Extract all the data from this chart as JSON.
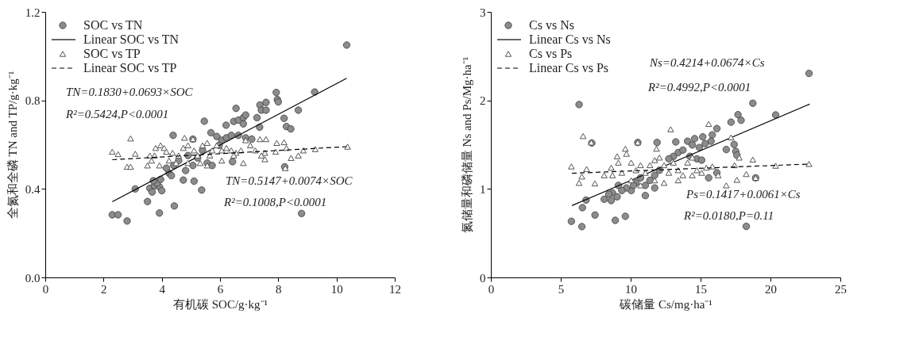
{
  "chart_data": [
    {
      "type": "scatter",
      "xlabel": "有机碳 SOC/g·kg⁻¹",
      "ylabel": "全氮和全磷 TN and TP/g·kg⁻¹",
      "xlim": [
        0,
        12
      ],
      "xticks": [
        0,
        2,
        4,
        6,
        8,
        10,
        12
      ],
      "ylim": [
        0,
        1.2
      ],
      "yticks": [
        {
          "value": 0,
          "label": "0.0"
        },
        0.4,
        0.8,
        1.2
      ],
      "grid": false,
      "legend": "top left",
      "series": [
        {
          "name": "SOC vs TN",
          "type": "scatter",
          "marker": "circle",
          "color": "#8c8c8c",
          "x": [
            10.35,
            2.3,
            2.5,
            2.81,
            3.92,
            4.43,
            3.51,
            3.09,
            3.59,
            3.75,
            3.67,
            3.92,
            4.0,
            3.84,
            3.71,
            3.96,
            4.25,
            4.16,
            4.41,
            4.33,
            4.74,
            5.11,
            5.37,
            4.39,
            5.46,
            5.07,
            5.69,
            4.58,
            4.9,
            5.23,
            5.56,
            5.73,
            5.4,
            5.07,
            4.82,
            5.89,
            6.06,
            6.22,
            5.97,
            6.21,
            6.39,
            6.43,
            6.55,
            6.47,
            6.63,
            6.8,
            6.88,
            6.8,
            6.63,
            6.88,
            7.09,
            7.27,
            7.37,
            7.58,
            7.42,
            7.58,
            7.36,
            7.93,
            7.97,
            8.0,
            8.2,
            8.28,
            8.43,
            8.69,
            9.25,
            8.22,
            8.8
          ],
          "values": [
            1.05,
            0.283,
            0.283,
            0.255,
            0.291,
            0.323,
            0.343,
            0.4,
            0.403,
            0.414,
            0.386,
            0.409,
            0.392,
            0.426,
            0.437,
            0.443,
            0.471,
            0.494,
            0.506,
            0.46,
            0.44,
            0.435,
            0.395,
            0.642,
            0.706,
            0.625,
            0.654,
            0.528,
            0.551,
            0.54,
            0.517,
            0.506,
            0.574,
            0.506,
            0.483,
            0.637,
            0.62,
            0.631,
            0.597,
            0.688,
            0.642,
            0.523,
            0.764,
            0.705,
            0.711,
            0.722,
            0.734,
            0.694,
            0.642,
            0.631,
            0.625,
            0.722,
            0.779,
            0.791,
            0.756,
            0.756,
            0.679,
            0.836,
            0.804,
            0.793,
            0.719,
            0.682,
            0.671,
            0.756,
            0.838,
            0.5,
            0.289
          ]
        },
        {
          "name": "Linear SOC vs TN",
          "type": "line",
          "line_style": "solid",
          "color": "#000000",
          "x": [
            2.3,
            10.35
          ],
          "values": [
            0.342,
            0.9
          ]
        },
        {
          "name": "SOC vs TP",
          "type": "scatter",
          "marker": "triangle",
          "color": "#555555",
          "x": [
            2.3,
            2.5,
            2.93,
            2.81,
            2.93,
            3.09,
            3.51,
            3.65,
            3.59,
            3.79,
            3.96,
            4.08,
            3.92,
            3.75,
            4.16,
            4.37,
            4.25,
            4.49,
            4.58,
            4.78,
            4.74,
            4.9,
            5.07,
            5.11,
            5.23,
            5.4,
            5.32,
            5.56,
            5.65,
            5.73,
            5.89,
            6.06,
            6.22,
            6.39,
            6.55,
            6.72,
            6.8,
            6.88,
            7.04,
            7.21,
            7.37,
            7.58,
            7.54,
            7.54,
            7.42,
            7.95,
            8.2,
            7.91,
            8.28,
            8.44,
            8.69,
            8.86,
            9.27,
            10.38,
            8.24,
            6.47,
            6.06,
            5.56,
            4.9
          ],
          "values": [
            0.568,
            0.557,
            0.628,
            0.5,
            0.5,
            0.559,
            0.506,
            0.528,
            0.551,
            0.585,
            0.597,
            0.585,
            0.506,
            0.551,
            0.568,
            0.563,
            0.528,
            0.517,
            0.551,
            0.631,
            0.585,
            0.597,
            0.625,
            0.574,
            0.551,
            0.597,
            0.517,
            0.608,
            0.551,
            0.574,
            0.597,
            0.574,
            0.585,
            0.574,
            0.563,
            0.574,
            0.517,
            0.62,
            0.597,
            0.574,
            0.625,
            0.625,
            0.563,
            0.534,
            0.551,
            0.608,
            0.611,
            0.568,
            0.585,
            0.54,
            0.551,
            0.574,
            0.58,
            0.591,
            0.494,
            0.551,
            0.528,
            0.506,
            0.517
          ]
        },
        {
          "name": "Linear SOC vs TP",
          "type": "line",
          "line_style": "dashed",
          "color": "#000000",
          "x": [
            2.3,
            10.35
          ],
          "values": [
            0.532,
            0.591
          ]
        }
      ],
      "annotations": [
        "TN=0.1830+0.0693×SOC",
        "R²=0.5424,P<0.0001",
        "TN=0.5147+0.0074×SOC",
        "R²=0.1008,P<0.0001"
      ]
    },
    {
      "type": "scatter",
      "xlabel": "碳储量 Cs/mg·ha⁻¹",
      "ylabel": "氮储量和磷储量 Ns and Ps/Mg·ha⁻¹",
      "xlim": [
        0,
        25
      ],
      "xticks": [
        0,
        5,
        10,
        15,
        20,
        25
      ],
      "ylim": [
        0,
        3
      ],
      "yticks": [
        0,
        1,
        2,
        3
      ],
      "grid": false,
      "legend": "top left",
      "series": [
        {
          "name": "Cs vs Ns",
          "type": "scatter",
          "marker": "circle",
          "color": "#8c8c8c",
          "x": [
            22.76,
            6.31,
            18.74,
            20.37,
            17.68,
            17.9,
            17.18,
            16.17,
            15.84,
            15.75,
            15.16,
            15.33,
            14.58,
            14.07,
            14.41,
            14.91,
            17.4,
            16.84,
            17.52,
            17.6,
            13.23,
            11.89,
            10.51,
            7.22,
            13.4,
            13.74,
            13.06,
            12.73,
            14.24,
            14.74,
            15.08,
            15.58,
            16.17,
            18.94,
            11.72,
            12.06,
            11.38,
            11.05,
            10.71,
            10.38,
            10.04,
            9.7,
            9.37,
            9.12,
            8.7,
            11.72,
            11.05,
            10.21,
            8.11,
            8.61,
            9.03,
            8.44,
            6.81,
            6.55,
            5.76,
            6.51,
            7.45,
            8.9,
            9.62,
            18.27
          ],
          "values": [
            2.305,
            1.953,
            1.968,
            1.836,
            1.839,
            1.776,
            1.754,
            1.682,
            1.611,
            1.539,
            1.588,
            1.511,
            1.568,
            1.539,
            1.497,
            1.468,
            1.502,
            1.445,
            1.425,
            1.382,
            1.531,
            1.525,
            1.525,
            1.519,
            1.411,
            1.439,
            1.368,
            1.34,
            1.368,
            1.34,
            1.325,
            1.125,
            1.182,
            1.125,
            1.154,
            1.211,
            1.097,
            1.04,
            1.125,
            1.068,
            0.982,
            1.011,
            0.982,
            1.04,
            0.954,
            1.011,
            0.925,
            1.04,
            0.883,
            0.868,
            0.911,
            0.94,
            0.874,
            0.788,
            0.634,
            0.574,
            0.705,
            0.645,
            0.691,
            0.577
          ]
        },
        {
          "name": "Linear Cs vs Ns",
          "type": "line",
          "line_style": "solid",
          "color": "#000000",
          "x": [
            5.8,
            22.8
          ],
          "values": [
            0.812,
            1.958
          ]
        },
        {
          "name": "Cs vs Ps",
          "type": "scatter",
          "marker": "triangle",
          "color": "#555555",
          "x": [
            5.76,
            6.6,
            7.18,
            6.85,
            6.51,
            6.31,
            7.44,
            8.11,
            8.61,
            9.03,
            9.12,
            9.62,
            9.7,
            10.51,
            11.85,
            12.86,
            15.58,
            17.18,
            17.77,
            17.43,
            18.74,
            20.37,
            22.76,
            18.27,
            17.6,
            16.84,
            18.94,
            10.04,
            10.38,
            10.71,
            11.05,
            11.38,
            11.72,
            12.06,
            12.39,
            12.73,
            13.06,
            13.4,
            13.74,
            14.07,
            14.41,
            14.74,
            15.08,
            15.42,
            15.84,
            16.26,
            10.04,
            10.71,
            11.72,
            12.39,
            13.4,
            14.41,
            9.37,
            8.7
          ],
          "values": [
            1.254,
            1.597,
            1.525,
            1.225,
            1.14,
            1.068,
            1.062,
            1.154,
            1.24,
            1.368,
            1.297,
            1.454,
            1.397,
            1.525,
            1.454,
            1.674,
            1.734,
            1.582,
            1.354,
            1.268,
            1.331,
            1.262,
            1.282,
            1.168,
            1.102,
            1.04,
            1.125,
            1.297,
            1.211,
            1.268,
            1.182,
            1.268,
            1.325,
            1.354,
            1.268,
            1.182,
            1.297,
            1.211,
            1.154,
            1.297,
            1.354,
            1.211,
            1.182,
            1.24,
            1.254,
            1.154,
            1.097,
            1.04,
            1.097,
            1.068,
            1.097,
            1.154,
            1.182,
            1.154
          ]
        },
        {
          "name": "Linear Cs vs Ps",
          "type": "line",
          "line_style": "dashed",
          "color": "#000000",
          "x": [
            5.8,
            22.8
          ],
          "values": [
            1.177,
            1.281
          ]
        }
      ],
      "annotations": [
        "Ns=0.4214+0.0674×Cs",
        "R²=0.4992,P<0.0001",
        "Ps=0.1417+0.0061×Cs",
        "R²=0.0180,P=0.11"
      ]
    }
  ]
}
